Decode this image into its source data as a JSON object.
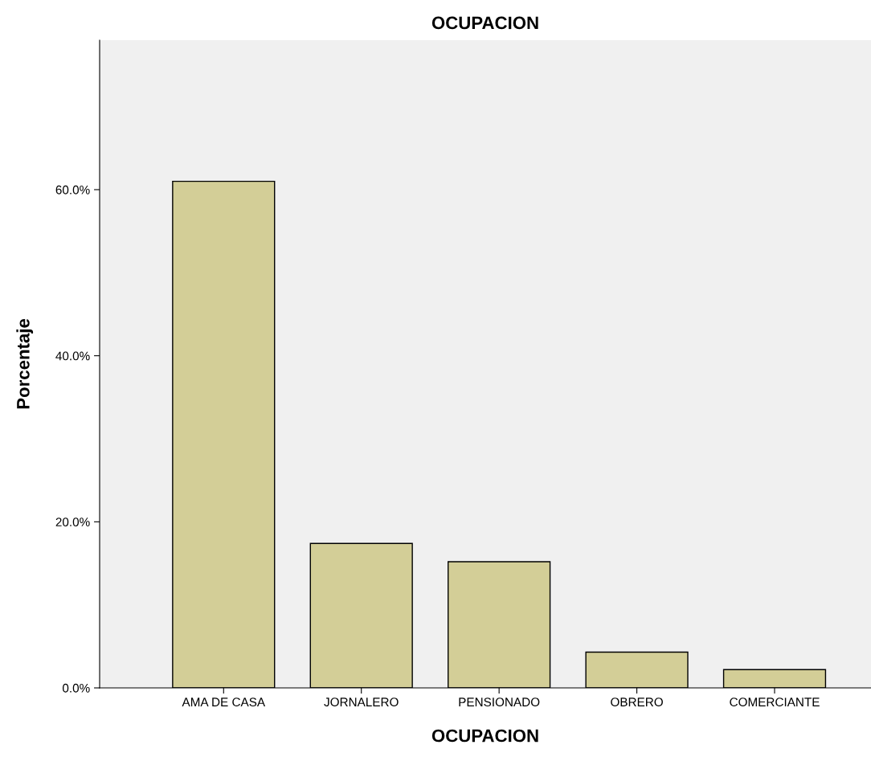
{
  "chart_data": {
    "type": "bar",
    "title": "OCUPACION",
    "xlabel": "OCUPACION",
    "ylabel": "Porcentaje",
    "categories": [
      "AMA DE CASA",
      "JORNALERO",
      "PENSIONADO",
      "OBRERO",
      "COMERCIANTE"
    ],
    "values": [
      61.0,
      17.4,
      15.2,
      4.3,
      2.2
    ],
    "color": "#d3ce97",
    "ylim": [
      0,
      78
    ],
    "yticks": [
      {
        "value": 0,
        "label": "0.0%"
      },
      {
        "value": 20,
        "label": "20.0%"
      },
      {
        "value": 40,
        "label": "40.0%"
      },
      {
        "value": 60,
        "label": "60.0%"
      }
    ],
    "grid": false
  }
}
